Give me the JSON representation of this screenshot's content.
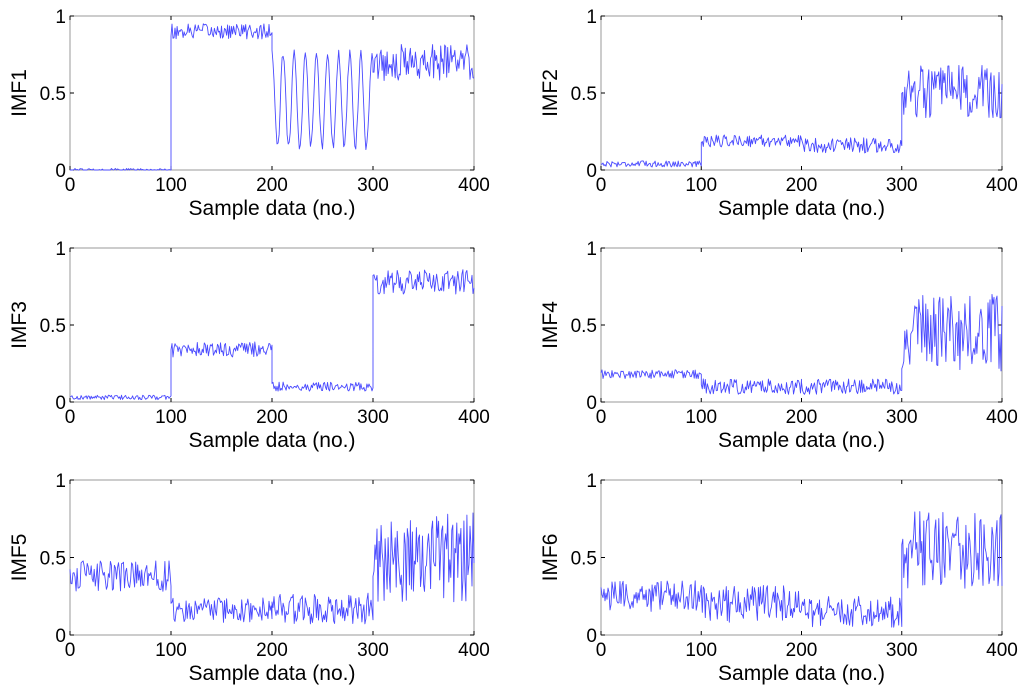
{
  "line_color": "#4a4aff",
  "chart_data": [
    {
      "type": "line",
      "title": "",
      "xlabel": "Sample data (no.)",
      "ylabel": "IMF1",
      "xlim": [
        0,
        400
      ],
      "ylim": [
        0,
        1
      ],
      "xticks": [
        "0",
        "100",
        "200",
        "300",
        "400"
      ],
      "yticks": [
        "0",
        "0.5",
        "1"
      ],
      "segments": [
        {
          "x_start": 0,
          "x_end": 100,
          "mean": 0.0,
          "spread": 0.01
        },
        {
          "x_start": 100,
          "x_end": 200,
          "mean": 0.9,
          "spread": 0.05
        },
        {
          "x_start": 200,
          "x_end": 300,
          "mean": 0.45,
          "spread": 0.3,
          "oscillation_period": 11
        },
        {
          "x_start": 300,
          "x_end": 400,
          "mean": 0.7,
          "spread": 0.12
        }
      ]
    },
    {
      "type": "line",
      "title": "",
      "xlabel": "Sample data (no.)",
      "ylabel": "IMF2",
      "xlim": [
        0,
        400
      ],
      "ylim": [
        0,
        1
      ],
      "xticks": [
        "0",
        "100",
        "200",
        "300",
        "400"
      ],
      "yticks": [
        "0",
        "0.5",
        "1"
      ],
      "segments": [
        {
          "x_start": 0,
          "x_end": 100,
          "mean": 0.04,
          "spread": 0.02
        },
        {
          "x_start": 100,
          "x_end": 200,
          "mean": 0.19,
          "spread": 0.04
        },
        {
          "x_start": 200,
          "x_end": 300,
          "mean": 0.16,
          "spread": 0.05
        },
        {
          "x_start": 300,
          "x_end": 400,
          "mean": 0.5,
          "spread": 0.18
        }
      ]
    },
    {
      "type": "line",
      "title": "",
      "xlabel": "Sample data (no.)",
      "ylabel": "IMF3",
      "xlim": [
        0,
        400
      ],
      "ylim": [
        0,
        1
      ],
      "xticks": [
        "0",
        "100",
        "200",
        "300",
        "400"
      ],
      "yticks": [
        "0",
        "0.5",
        "1"
      ],
      "segments": [
        {
          "x_start": 0,
          "x_end": 100,
          "mean": 0.03,
          "spread": 0.015
        },
        {
          "x_start": 100,
          "x_end": 200,
          "mean": 0.34,
          "spread": 0.05
        },
        {
          "x_start": 200,
          "x_end": 300,
          "mean": 0.1,
          "spread": 0.03
        },
        {
          "x_start": 300,
          "x_end": 400,
          "mean": 0.78,
          "spread": 0.08
        }
      ]
    },
    {
      "type": "line",
      "title": "",
      "xlabel": "Sample data (no.)",
      "ylabel": "IMF4",
      "xlim": [
        0,
        400
      ],
      "ylim": [
        0,
        1
      ],
      "xticks": [
        "0",
        "100",
        "200",
        "300",
        "400"
      ],
      "yticks": [
        "0",
        "0.5",
        "1"
      ],
      "segments": [
        {
          "x_start": 0,
          "x_end": 100,
          "mean": 0.18,
          "spread": 0.03
        },
        {
          "x_start": 100,
          "x_end": 200,
          "mean": 0.1,
          "spread": 0.05
        },
        {
          "x_start": 200,
          "x_end": 300,
          "mean": 0.1,
          "spread": 0.05
        },
        {
          "x_start": 300,
          "x_end": 400,
          "mean": 0.45,
          "spread": 0.25
        }
      ]
    },
    {
      "type": "line",
      "title": "",
      "xlabel": "Sample data (no.)",
      "ylabel": "IMF5",
      "xlim": [
        0,
        400
      ],
      "ylim": [
        0,
        1
      ],
      "xticks": [
        "0",
        "100",
        "200",
        "300",
        "400"
      ],
      "yticks": [
        "0",
        "0.5",
        "1"
      ],
      "segments": [
        {
          "x_start": 0,
          "x_end": 100,
          "mean": 0.38,
          "spread": 0.1
        },
        {
          "x_start": 100,
          "x_end": 200,
          "mean": 0.16,
          "spread": 0.08
        },
        {
          "x_start": 200,
          "x_end": 300,
          "mean": 0.17,
          "spread": 0.1
        },
        {
          "x_start": 300,
          "x_end": 400,
          "mean": 0.5,
          "spread": 0.3
        }
      ]
    },
    {
      "type": "line",
      "title": "",
      "xlabel": "Sample data (no.)",
      "ylabel": "IMF6",
      "xlim": [
        0,
        400
      ],
      "ylim": [
        0,
        1
      ],
      "xticks": [
        "0",
        "100",
        "200",
        "300",
        "400"
      ],
      "yticks": [
        "0",
        "0.5",
        "1"
      ],
      "segments": [
        {
          "x_start": 0,
          "x_end": 100,
          "mean": 0.25,
          "spread": 0.1
        },
        {
          "x_start": 100,
          "x_end": 200,
          "mean": 0.2,
          "spread": 0.12
        },
        {
          "x_start": 200,
          "x_end": 300,
          "mean": 0.15,
          "spread": 0.1
        },
        {
          "x_start": 300,
          "x_end": 400,
          "mean": 0.55,
          "spread": 0.25
        }
      ]
    }
  ]
}
